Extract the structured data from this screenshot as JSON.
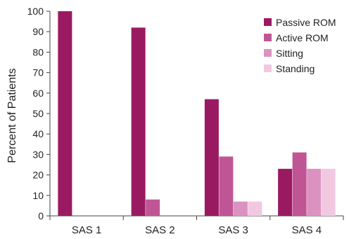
{
  "chart_data": {
    "type": "bar",
    "title": "",
    "xlabel": "",
    "ylabel": "Percent of Patients",
    "ylim": [
      0,
      100
    ],
    "yticks": [
      0,
      10,
      20,
      30,
      40,
      50,
      60,
      70,
      80,
      90,
      100
    ],
    "categories": [
      "SAS 1",
      "SAS 2",
      "SAS 3",
      "SAS 4"
    ],
    "series": [
      {
        "name": "Passive ROM",
        "color": "#9a1a62",
        "values": [
          100,
          92,
          57,
          23
        ]
      },
      {
        "name": "Active ROM",
        "color": "#c05596",
        "values": [
          0,
          8,
          29,
          31
        ]
      },
      {
        "name": "Sitting",
        "color": "#dc92c0",
        "values": [
          0,
          0,
          7,
          23
        ]
      },
      {
        "name": "Standing",
        "color": "#f2c8e1",
        "values": [
          0,
          0,
          7,
          23
        ]
      }
    ],
    "legend_position": "top-right",
    "grid": false
  }
}
